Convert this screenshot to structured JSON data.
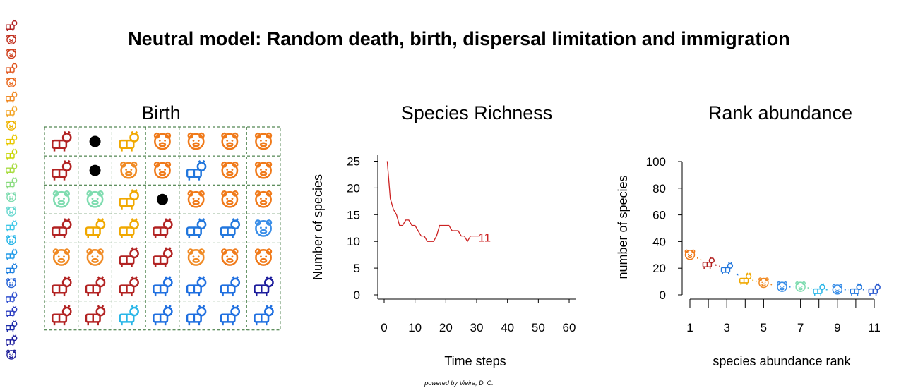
{
  "title": "Neutral model:  Random death, birth, dispersal limitation and immigration",
  "credit": "powered by Vieira, D. C.",
  "colors": {
    "dark_red": "#b22222",
    "orange": "#f08a24",
    "gold": "#f0a800",
    "mint": "#7fdcb0",
    "sky": "#1e90ff",
    "royal": "#3050d8",
    "navy": "#1c1c9c",
    "grid_line": "#2a6a2a",
    "richness_line": "#cc2222"
  },
  "species_palette": [
    {
      "name": "cat",
      "color": "#b22222"
    },
    {
      "name": "pig",
      "color": "#f08a24"
    },
    {
      "name": "raccoon",
      "color": "#f07a1a"
    },
    {
      "name": "cow",
      "color": "#f0a800"
    },
    {
      "name": "monkey",
      "color": "#7fdcb0"
    },
    {
      "name": "horse",
      "color": "#29b6e8"
    },
    {
      "name": "goat",
      "color": "#2277dd"
    },
    {
      "name": "wolf",
      "color": "#3a8ee8"
    },
    {
      "name": "ox",
      "color": "#1f6fe0"
    },
    {
      "name": "bull",
      "color": "#2a5ad0"
    },
    {
      "name": "zebra",
      "color": "#1c1c9c"
    }
  ],
  "sidebar_colors": [
    "#b22222",
    "#c0301f",
    "#d0401e",
    "#e0561e",
    "#ea6a20",
    "#f08a24",
    "#f2a01a",
    "#f0b400",
    "#e8c800",
    "#c8d400",
    "#a8dc40",
    "#8adc80",
    "#7fdcb0",
    "#6ad8d0",
    "#40c8e8",
    "#29b6e8",
    "#1e9ae8",
    "#1f80e0",
    "#2a66d8",
    "#3050d0",
    "#2a3cc0",
    "#1c2caa",
    "#1c1c9c",
    "#24249c"
  ],
  "birth_panel": {
    "title": "Birth",
    "grid": [
      [
        "cat",
        "dot",
        "cow",
        "raccoon",
        "raccoon",
        "raccoon",
        "raccoon"
      ],
      [
        "cat",
        "dot",
        "pig",
        "raccoon",
        "goat",
        "raccoon",
        "raccoon"
      ],
      [
        "monkey",
        "monkey",
        "cow",
        "dot",
        "raccoon",
        "raccoon",
        "raccoon"
      ],
      [
        "cat",
        "cow",
        "cow",
        "cat",
        "goat",
        "goat",
        "wolf"
      ],
      [
        "pig",
        "pig",
        "cat",
        "cat",
        "pig",
        "raccoon",
        "raccoon"
      ],
      [
        "cat",
        "cat",
        "cat",
        "ox",
        "ox",
        "ox",
        "zebra"
      ],
      [
        "cat",
        "cat",
        "horse",
        "ox",
        "ox",
        "ox",
        "ox"
      ]
    ]
  },
  "chart_data": [
    {
      "type": "line",
      "title": "Species Richness",
      "xlabel": "Time steps",
      "ylabel": "Number of species",
      "xlim": [
        0,
        60
      ],
      "ylim": [
        0,
        25
      ],
      "xticks": [
        0,
        10,
        20,
        30,
        40,
        50,
        60
      ],
      "yticks": [
        0,
        5,
        10,
        15,
        20,
        25
      ],
      "x": [
        1,
        2,
        3,
        4,
        5,
        6,
        7,
        8,
        9,
        10,
        11,
        12,
        13,
        14,
        15,
        16,
        17,
        18,
        19,
        20,
        21,
        22,
        23,
        24,
        25,
        26,
        27,
        28,
        29,
        30,
        31
      ],
      "values": [
        25,
        18,
        16,
        15,
        13,
        13,
        14,
        14,
        13,
        13,
        12,
        11,
        11,
        10,
        10,
        10,
        11,
        13,
        13,
        13,
        13,
        12,
        12,
        12,
        11,
        11,
        10,
        11,
        11,
        11,
        11
      ],
      "end_label": "11"
    },
    {
      "type": "scatter",
      "title": "Rank abundance",
      "xlabel": "species abundance rank",
      "ylabel": "number of species",
      "xlim": [
        1,
        11
      ],
      "ylim": [
        0,
        100
      ],
      "xticks": [
        1,
        3,
        5,
        7,
        9,
        11
      ],
      "yticks": [
        0,
        20,
        40,
        60,
        80,
        100
      ],
      "x": [
        1,
        2,
        3,
        4,
        5,
        6,
        7,
        8,
        9,
        10,
        11
      ],
      "values": [
        30,
        24,
        20,
        12,
        9,
        6,
        6,
        4,
        4,
        4,
        4
      ],
      "species": [
        "raccoon",
        "cat",
        "goat",
        "cow",
        "pig",
        "wolf",
        "monkey",
        "horse",
        "wolf",
        "goat",
        "bull"
      ],
      "colors": [
        "#f07a1a",
        "#b22222",
        "#2277dd",
        "#f0a800",
        "#f08a24",
        "#3a8ee8",
        "#7fdcb0",
        "#29b6e8",
        "#3a8ee8",
        "#2277dd",
        "#2a5ad0"
      ]
    }
  ]
}
